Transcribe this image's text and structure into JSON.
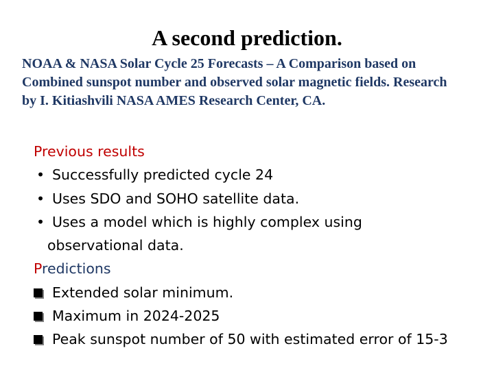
{
  "slide": {
    "title": "A second prediction.",
    "subtitle": "NOAA & NASA Solar Cycle 25 Forecasts – A Comparison based on Combined sunspot number and observed solar magnetic fields.  Research by I. Kitiashvili NASA AMES Research Center, CA.",
    "previous_heading": "Previous results",
    "previous_items": [
      "Successfully predicted cycle 24",
      "Uses SDO and SOHO satellite data.",
      "Uses a model which is highly complex using",
      "observational data."
    ],
    "predictions_heading_first_letter": "P",
    "predictions_heading_rest": "redictions",
    "prediction_items": [
      "Extended solar minimum.",
      "Maximum in 2024-2025",
      "Peak sunspot number of 50  with estimated error of 15-3"
    ],
    "bullet_glyph": "•",
    "colors": {
      "heading_red": "#c00000",
      "subtitle_navy": "#1f3864",
      "text": "#000000"
    },
    "icons": {
      "checkbox_bullet": "square-bullet-icon"
    }
  }
}
